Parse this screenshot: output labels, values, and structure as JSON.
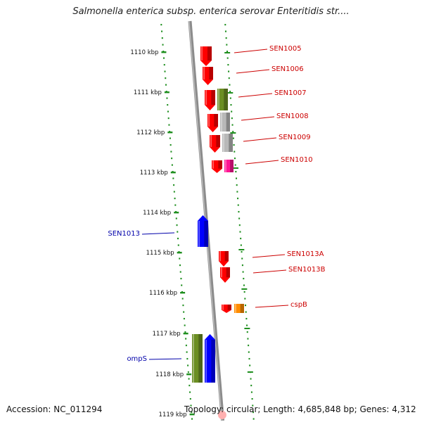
{
  "title": "Salmonella enterica subsp. enterica serovar Enteritidis str....",
  "accession_text": "Accession: NC_011294",
  "topology_text": "Topology: circular; Length: 4,685,848 bp; Genes: 4,312",
  "colors": {
    "backbone": "#8c8c8c",
    "tick_green": "#1f8f1f",
    "forward_label": "#cc0000",
    "reverse_label": "#0000aa"
  },
  "ruler": {
    "unit": "kbp",
    "labels": [
      "1110 kbp",
      "1111 kbp",
      "1112 kbp",
      "1113 kbp",
      "1114 kbp",
      "1115 kbp",
      "1116 kbp",
      "1117 kbp",
      "1118 kbp",
      "1119 kbp"
    ]
  },
  "genes": [
    {
      "label": "SEN1005",
      "strand": "forward",
      "color": "#ff0000"
    },
    {
      "label": "SEN1006",
      "strand": "forward",
      "color": "#ff0000"
    },
    {
      "label": "SEN1007",
      "strand": "forward",
      "color": "#ff0000"
    },
    {
      "label": "",
      "strand": "forward",
      "color": "#6b8e23"
    },
    {
      "label": "SEN1008",
      "strand": "forward",
      "color": "#ff0000"
    },
    {
      "label": "",
      "strand": "forward",
      "color": "#b8b8b8"
    },
    {
      "label": "SEN1009",
      "strand": "forward",
      "color": "#ff0000"
    },
    {
      "label": "",
      "strand": "forward",
      "color": "#b8b8b8"
    },
    {
      "label": "SEN1010",
      "strand": "forward",
      "color": "#ff0000"
    },
    {
      "label": "",
      "strand": "forward",
      "color": "#ff1493"
    },
    {
      "label": "SEN1013",
      "strand": "reverse",
      "color": "#0000ff"
    },
    {
      "label": "SEN1013A",
      "strand": "forward",
      "color": "#ff0000"
    },
    {
      "label": "SEN1013B",
      "strand": "forward",
      "color": "#ff0000"
    },
    {
      "label": "cspB",
      "strand": "forward",
      "color": "#ff0000"
    },
    {
      "label": "",
      "strand": "forward",
      "color": "#ff8c00"
    },
    {
      "label": "ompS",
      "strand": "reverse",
      "color": "#6b8e23"
    },
    {
      "label": "",
      "strand": "reverse",
      "color": "#0000ff"
    }
  ]
}
